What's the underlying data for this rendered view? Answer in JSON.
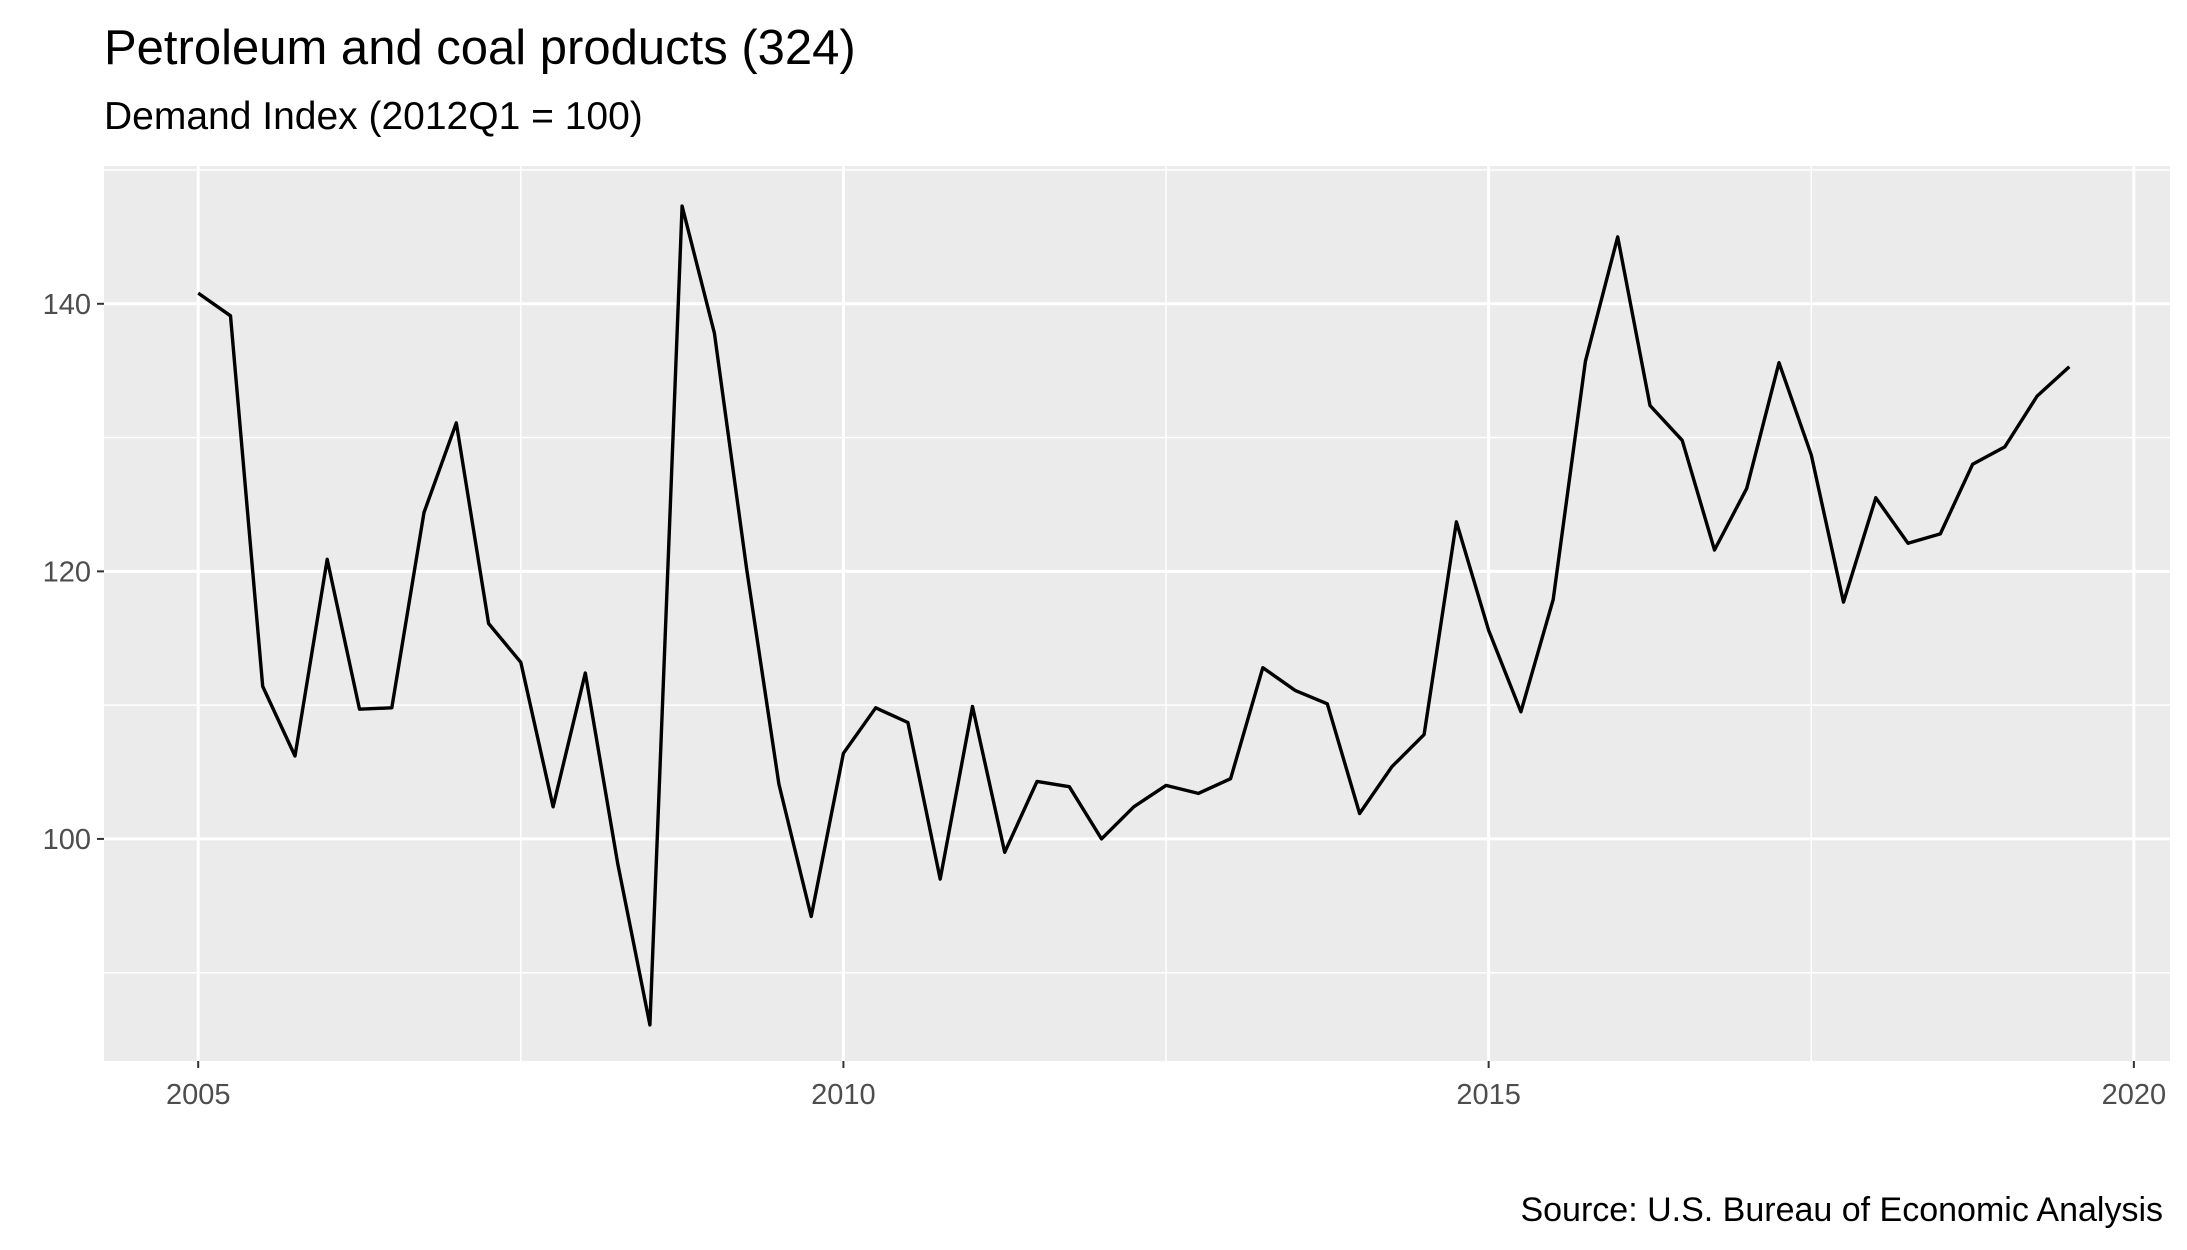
{
  "chart_data": {
    "type": "line",
    "title": "Petroleum and coal products (324)",
    "subtitle": "Demand Index (2012Q1 = 100)",
    "caption": "Source: U.S. Bureau of Economic Analysis",
    "xlabel": "",
    "ylabel": "",
    "xlim": [
      2004.27,
      2020.28
    ],
    "ylim": [
      83.4,
      150.3
    ],
    "x_ticks": [
      2005,
      2010,
      2015,
      2020
    ],
    "y_ticks": [
      100,
      120,
      140
    ],
    "grid": true,
    "legend": "none",
    "series": [
      {
        "color": "#000000",
        "x": [
          2005.0,
          2005.25,
          2005.5,
          2005.75,
          2006.0,
          2006.25,
          2006.5,
          2006.75,
          2007.0,
          2007.25,
          2007.5,
          2007.75,
          2008.0,
          2008.25,
          2008.5,
          2008.75,
          2009.0,
          2009.25,
          2009.5,
          2009.75,
          2010.0,
          2010.25,
          2010.5,
          2010.75,
          2011.0,
          2011.25,
          2011.5,
          2011.75,
          2012.0,
          2012.25,
          2012.5,
          2012.75,
          2013.0,
          2013.25,
          2013.5,
          2013.75,
          2014.0,
          2014.25,
          2014.5,
          2014.75,
          2015.0,
          2015.25,
          2015.5,
          2015.75,
          2016.0,
          2016.25,
          2016.5,
          2016.75,
          2017.0,
          2017.25,
          2017.5,
          2017.75,
          2018.0,
          2018.25,
          2018.5,
          2018.75,
          2019.0,
          2019.25,
          2019.5
        ],
        "values": [
          140.8,
          139.1,
          111.4,
          106.2,
          120.9,
          109.7,
          109.8,
          124.4,
          131.1,
          116.1,
          113.2,
          102.4,
          112.4,
          98.2,
          86.1,
          147.3,
          137.8,
          120.2,
          104.1,
          94.2,
          106.4,
          109.8,
          108.7,
          97.0,
          109.9,
          99.0,
          104.3,
          103.9,
          100.0,
          102.4,
          104.0,
          103.4,
          104.5,
          112.8,
          111.1,
          110.1,
          101.9,
          105.4,
          107.8,
          123.7,
          115.6,
          109.5,
          117.9,
          135.7,
          145.0,
          132.4,
          129.8,
          121.6,
          126.2,
          135.6,
          128.7,
          117.7,
          125.5,
          122.1,
          122.8,
          128.0,
          129.3,
          133.1,
          135.3
        ]
      }
    ]
  }
}
